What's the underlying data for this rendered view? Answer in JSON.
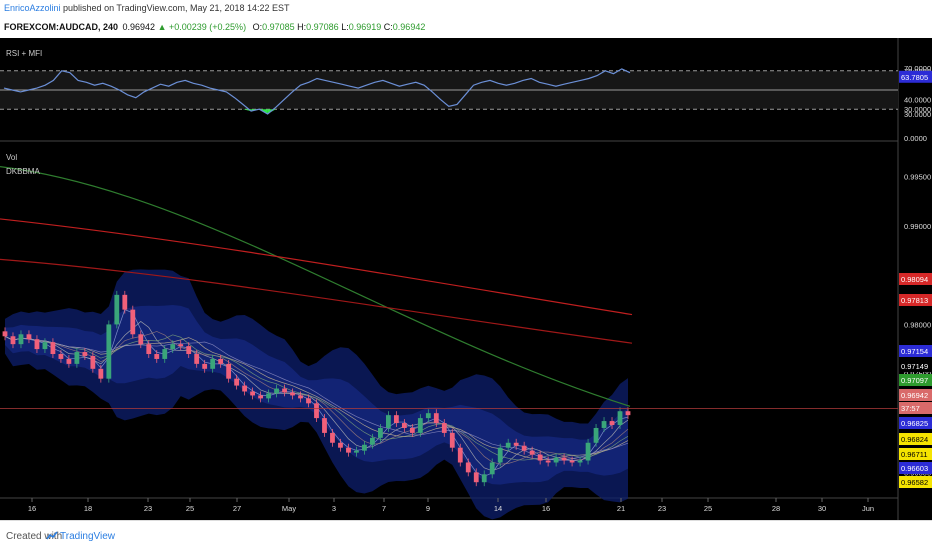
{
  "header": {
    "author": "EnricoAzzolini",
    "published_text": " published on TradingView.com, May 21, 2018 14:22 EST",
    "symbol": "FOREXCOM:AUDCAD, 240",
    "last_price": "0.96942",
    "change": "▲ +0.00239 (+0.25%)",
    "open_label": "O:",
    "open": "0.97085",
    "high_label": "H:",
    "high": "0.97086",
    "low_label": "L:",
    "low": "0.96919",
    "close_label": "C:",
    "close": "0.96942"
  },
  "indicators": {
    "top_pane_title": "RSI + MFI",
    "vol_label": "Vol",
    "dkbbma_label": "DKBBMA"
  },
  "footer": {
    "created_with": "Created with",
    "brand": "TradingView"
  },
  "colors": {
    "background": "#000000",
    "rsi_line": "#6b8fd6",
    "rsi_oversold_fill": "#2ee84a",
    "sma_green": "#2f7d2f",
    "sma_red": "#c01f1f",
    "bollinger_fill": "#0d1f6e",
    "candle_up": "#3aa57a",
    "candle_down": "#f0607a"
  },
  "chart_data": [
    {
      "type": "line",
      "pane": "top",
      "title": "RSI + MFI",
      "ylim": [
        0,
        100
      ],
      "y_ticks": [
        "70.0000",
        "70.0000",
        "63.7805",
        "40.0000",
        "30.0000",
        "30.0000",
        "0.0000"
      ],
      "levels": [
        70,
        50,
        30
      ],
      "series": [
        {
          "values": [
            52,
            50,
            48,
            50,
            52,
            55,
            60,
            70,
            68,
            60,
            58,
            55,
            57,
            54,
            50,
            45,
            42,
            48,
            52,
            56,
            54,
            58,
            60,
            57,
            55,
            52,
            50,
            48,
            42,
            35,
            28,
            30,
            25,
            32,
            40,
            48,
            55,
            58,
            62,
            60,
            58,
            56,
            54,
            52,
            55,
            58,
            60,
            57,
            54,
            56,
            58,
            55,
            48,
            40,
            33,
            35,
            45,
            55,
            58,
            60,
            57,
            55,
            57,
            60,
            62,
            58,
            56,
            54,
            56,
            58,
            60,
            62,
            65,
            70,
            67,
            72,
            68
          ]
        }
      ]
    },
    {
      "type": "candlestick",
      "pane": "main",
      "indicators": [
        "Vol",
        "DKBBMA"
      ],
      "y_ticks": [
        "0.99500",
        "0.99000",
        "0.98500",
        "0.98000",
        "0.97500",
        "0.97000",
        "0.96500"
      ],
      "ylim": [
        0.9625,
        0.9985
      ],
      "x_ticks": [
        "16",
        "18",
        "23",
        "25",
        "27",
        "May",
        "3",
        "7",
        "9",
        "14",
        "16",
        "21",
        "23",
        "25",
        "28",
        "30",
        "Jun"
      ],
      "price_labels": [
        "0.98094",
        "0.97813",
        "0.97154",
        "0.97149",
        "0.97097",
        "0.96942",
        "37:57",
        "0.96825",
        "0.96824",
        "0.96711",
        "0.96603",
        "0.96582"
      ],
      "close": [
        0.9788,
        0.978,
        0.979,
        0.9785,
        0.9775,
        0.9782,
        0.977,
        0.9765,
        0.976,
        0.9772,
        0.9768,
        0.9755,
        0.9745,
        0.98,
        0.983,
        0.9815,
        0.979,
        0.978,
        0.977,
        0.9765,
        0.9775,
        0.978,
        0.9778,
        0.977,
        0.976,
        0.9755,
        0.9765,
        0.976,
        0.9745,
        0.9738,
        0.9732,
        0.9728,
        0.9725,
        0.973,
        0.9735,
        0.9731,
        0.9728,
        0.9725,
        0.972,
        0.9705,
        0.969,
        0.968,
        0.9675,
        0.967,
        0.9672,
        0.9678,
        0.9685,
        0.9695,
        0.9708,
        0.97,
        0.9695,
        0.969,
        0.9705,
        0.971,
        0.97,
        0.969,
        0.9675,
        0.966,
        0.965,
        0.964,
        0.9648,
        0.966,
        0.9675,
        0.968,
        0.9677,
        0.9672,
        0.9668,
        0.9662,
        0.966,
        0.9665,
        0.9662,
        0.966,
        0.9662,
        0.968,
        0.9695,
        0.9702,
        0.9698,
        0.9712,
        0.9708
      ]
    }
  ]
}
